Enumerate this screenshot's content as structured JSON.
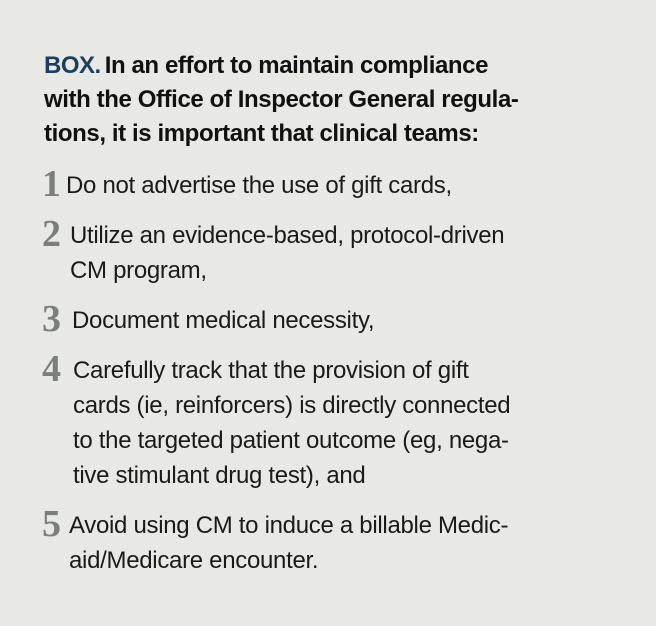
{
  "box": {
    "tag": "BOX.",
    "heading_lines": "In an effort to maintain compliance\nwith the Office of Inspector General regula-\ntions, it is important that clinical teams:",
    "items": [
      {
        "number": "1",
        "text": "Do not advertise the use of gift cards,"
      },
      {
        "number": "2",
        "text": "Utilize an evidence-based, protocol-driven\nCM program,"
      },
      {
        "number": "3",
        "text": "Document medical necessity,"
      },
      {
        "number": "4",
        "text": "Carefully track that the provision of gift\ncards (ie, reinforcers) is directly connected\nto the targeted patient outcome (eg, nega-\ntive stimulant drug test),  and"
      },
      {
        "number": "5",
        "text": "Avoid using CM to induce a billable Medic-\naid/Medicare encounter."
      }
    ],
    "colors": {
      "background": "#e8e9e4",
      "tag": "#1d3f5e",
      "number": "#7b7f7c",
      "text": "#1a1a1a"
    }
  }
}
